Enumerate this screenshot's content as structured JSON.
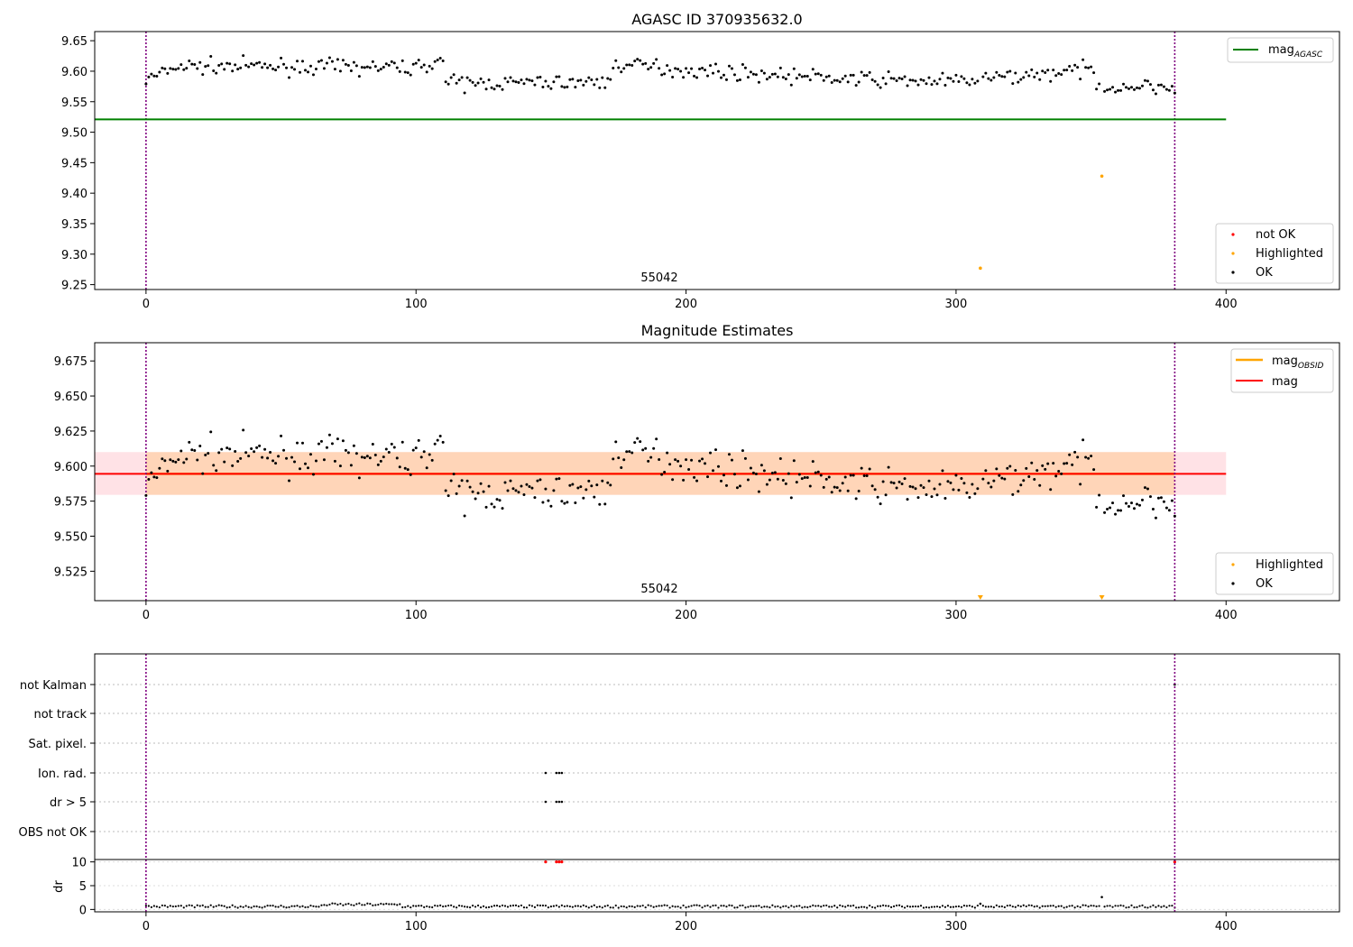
{
  "chart_data": [
    {
      "type": "scatter",
      "title": "AGASC ID 370935632.0",
      "xlim": [
        -19,
        442
      ],
      "ylim": [
        9.242,
        9.665
      ],
      "xticks": [
        0,
        100,
        200,
        300,
        400
      ],
      "xtick_labels": [
        "0",
        "100",
        "200",
        "300",
        "400"
      ],
      "yticks": [
        9.25,
        9.3,
        9.35,
        9.4,
        9.45,
        9.5,
        9.55,
        9.6,
        9.65
      ],
      "ytick_labels": [
        "9.25",
        "9.30",
        "9.35",
        "9.40",
        "9.45",
        "9.50",
        "9.55",
        "9.60",
        "9.65"
      ],
      "vlines": [
        0,
        381
      ],
      "mag_agasc": {
        "value": 9.521,
        "x_range": [
          -19,
          400
        ],
        "color": "#008000"
      },
      "annotation": {
        "text": "55042",
        "x": 190
      },
      "highlighted": [
        [
          309,
          9.277
        ],
        [
          354,
          9.428
        ]
      ],
      "legend_lines": [
        "mag_AGASC"
      ],
      "legend_lines_display": {
        "base": "mag",
        "sub": "AGASC"
      },
      "legend_points": [
        "not OK",
        "Highlighted",
        "OK"
      ],
      "legend_placement": [
        "top-right",
        "bottom-right"
      ],
      "colors": {
        "ok": "#000000",
        "not_ok": "#ff0000",
        "highlighted": "#ffa500",
        "vline": "#800080"
      }
    },
    {
      "type": "scatter",
      "title": "Magnitude Estimates",
      "xlim": [
        -19,
        442
      ],
      "ylim": [
        9.504,
        9.688
      ],
      "xticks": [
        0,
        100,
        200,
        300,
        400
      ],
      "xtick_labels": [
        "0",
        "100",
        "200",
        "300",
        "400"
      ],
      "yticks": [
        9.525,
        9.55,
        9.575,
        9.6,
        9.625,
        9.65,
        9.675
      ],
      "ytick_labels": [
        "9.525",
        "9.550",
        "9.575",
        "9.600",
        "9.625",
        "9.650",
        "9.675"
      ],
      "vlines": [
        0,
        381
      ],
      "mag": {
        "value": 9.5945,
        "x_range": [
          -19,
          400
        ],
        "color": "#ff0000"
      },
      "mag_band": {
        "low": 9.5795,
        "high": 9.61,
        "color": "#ffb6c1"
      },
      "mag_obsid": {
        "value": 9.5945,
        "low": 9.5795,
        "high": 9.61,
        "x_range": [
          0,
          381
        ],
        "color": "#ffa500"
      },
      "annotation": {
        "text": "55042",
        "x": 190
      },
      "highlighted_offscale": [
        309,
        354
      ],
      "legend_lines": [
        "mag_OBSID",
        "mag"
      ],
      "legend_lines_display": [
        {
          "base": "mag",
          "sub": "OBSID"
        },
        {
          "base": "mag",
          "sub": ""
        }
      ],
      "legend_points": [
        "Highlighted",
        "OK"
      ],
      "legend_placement": [
        "top-right",
        "bottom-right"
      ]
    },
    {
      "type": "scatter",
      "title": "",
      "xlim": [
        -19,
        442
      ],
      "xticks": [
        0,
        100,
        200,
        300,
        400
      ],
      "xtick_labels": [
        "0",
        "100",
        "200",
        "300",
        "400"
      ],
      "flag_labels": [
        "not Kalman",
        "not track",
        "Sat. pixel.",
        "Ion. rad.",
        "dr > 5",
        "OBS not OK"
      ],
      "flag_points": {
        "Ion. rad.": [
          148,
          152,
          153,
          154
        ],
        "dr > 5": [
          148,
          152,
          153,
          154
        ],
        "not Kalman": [
          381
        ]
      },
      "dr_ylabel": "dr",
      "dr_yticks": [
        0,
        5,
        10
      ],
      "dr_ytick_labels": [
        "0",
        "5",
        "10"
      ],
      "dr_ylim": [
        -0.5,
        10.5
      ],
      "dr_notok": [
        148,
        152,
        153,
        154,
        381
      ],
      "dr_highlight_points": [
        [
          309,
          1.2
        ],
        [
          354,
          2.6
        ]
      ],
      "vlines": [
        0,
        381
      ]
    }
  ]
}
